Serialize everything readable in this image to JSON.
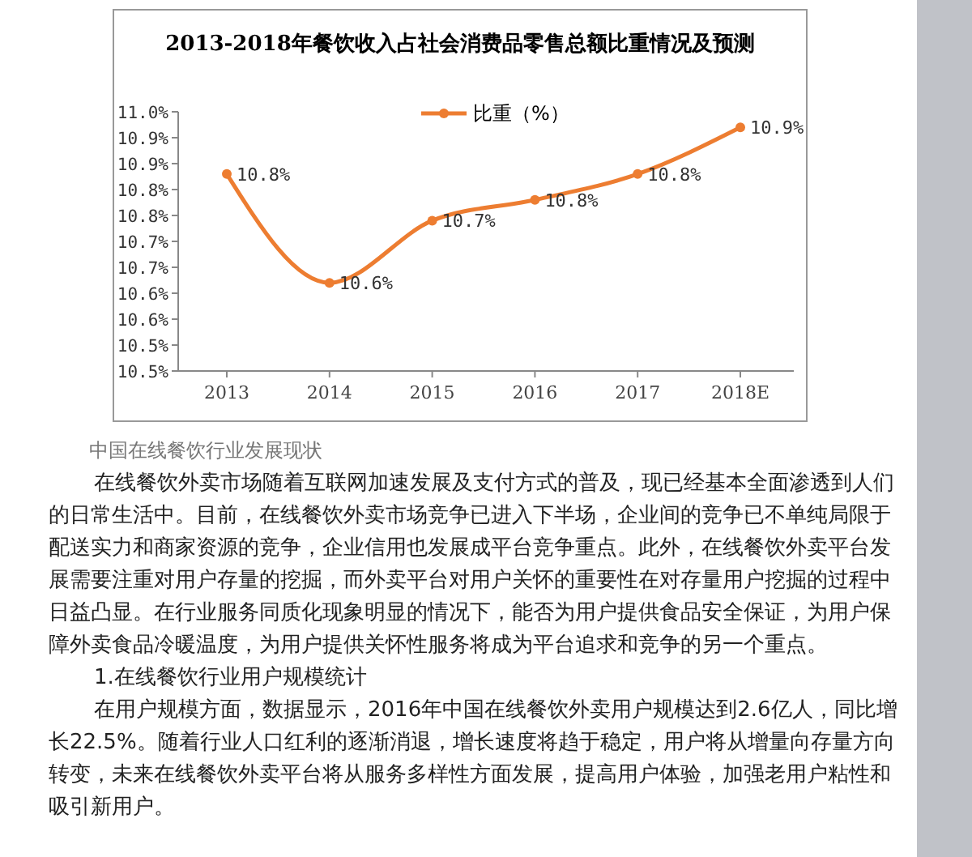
{
  "chart_data": {
    "type": "line",
    "title": "2013-2018年餐饮收入占社会消费品零售总额比重情况及预测",
    "categories": [
      "2013",
      "2014",
      "2015",
      "2016",
      "2017",
      "2018E"
    ],
    "series": [
      {
        "name": "比重（%）",
        "color": "#ed7d31",
        "values": [
          10.83,
          10.62,
          10.74,
          10.78,
          10.83,
          10.92
        ],
        "value_labels": [
          "10.8%",
          "10.6%",
          "10.7%",
          "10.8%",
          "10.8%",
          "10.9%"
        ]
      }
    ],
    "ylim": [
      10.45,
      10.95
    ],
    "yticks": [
      {
        "value": 10.45,
        "label": "10.5%"
      },
      {
        "value": 10.5,
        "label": "10.5%"
      },
      {
        "value": 10.55,
        "label": "10.6%"
      },
      {
        "value": 10.6,
        "label": "10.6%"
      },
      {
        "value": 10.65,
        "label": "10.7%"
      },
      {
        "value": 10.7,
        "label": "10.7%"
      },
      {
        "value": 10.75,
        "label": "10.8%"
      },
      {
        "value": 10.8,
        "label": "10.8%"
      },
      {
        "value": 10.85,
        "label": "10.9%"
      },
      {
        "value": 10.9,
        "label": "10.9%"
      },
      {
        "value": 10.95,
        "label": "11.0%"
      }
    ],
    "legend": "top",
    "marker": "circle",
    "line_style": "solid",
    "grid": false,
    "annotations": [
      "中国在线餐饮行业发展现状",
      "在线餐饮外卖市场随着互联网加速发展及支付方式的普及，现已经基本全面渗透到人们的日常生活中。目前，在线餐饮外卖市场竞争已进入下半场，企业间的竞争已不单纯局限于配送实力和商家资源的竞争，企业信用也发展成平台竞争重点。此外，在线餐饮外卖平台发展需要注重对用户存量的挖掘，而外卖平台对用户关怀的重要性在对存量用户挖掘的过程中日益凸显。在行业服务同质化现象明显的情况下，能否为用户提供食品安全保证，为用户保障外卖食品冷暖温度，为用户提供关怀性服务将成为平台追求和竞争的另一个重点。",
      "1.在线餐饮行业用户规模统计",
      "在用户规模方面，数据显示，2016年中国在线餐饮外卖用户规模达到2.6亿人，同比增长22.5%。随着行业人口红利的逐渐消退，增长速度将趋于稳定，用户将从增量向存量方向转变，未来在线餐饮外卖平台将从服务多样性方面发展，提高用户体验，加强老用户粘性和吸引新用户。"
    ]
  }
}
